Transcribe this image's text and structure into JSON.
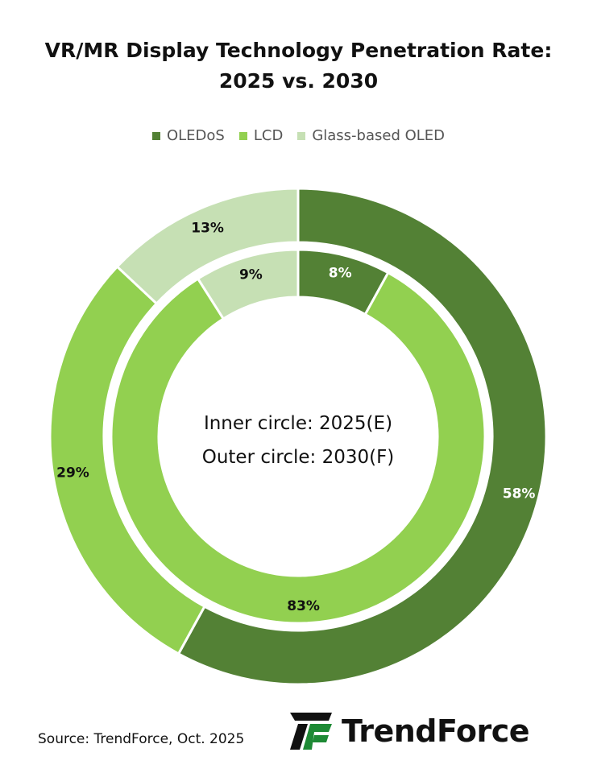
{
  "chart_data": {
    "type": "donut",
    "title_lines": [
      "VR/MR Display Technology Penetration Rate:",
      "2025 vs. 2030"
    ],
    "legend_position": "top",
    "categories": [
      "OLEDoS",
      "LCD",
      "Glass-based OLED"
    ],
    "colors": [
      "#538135",
      "#92d050",
      "#c6e0b4"
    ],
    "series": [
      {
        "name": "Inner circle: 2025(E)",
        "ring": "inner",
        "values": [
          8,
          83,
          9
        ],
        "labels": [
          "8%",
          "83%",
          "9%"
        ]
      },
      {
        "name": "Outer circle: 2030(F)",
        "ring": "outer",
        "values": [
          58,
          29,
          13
        ],
        "labels": [
          "58%",
          "29%",
          "13%"
        ]
      }
    ],
    "center_text": [
      "Inner circle: 2025(E)",
      "Outer circle: 2030(F)"
    ]
  },
  "footer": {
    "source": "Source: TrendForce, Oct. 2025",
    "logo_text": "TrendForce"
  }
}
